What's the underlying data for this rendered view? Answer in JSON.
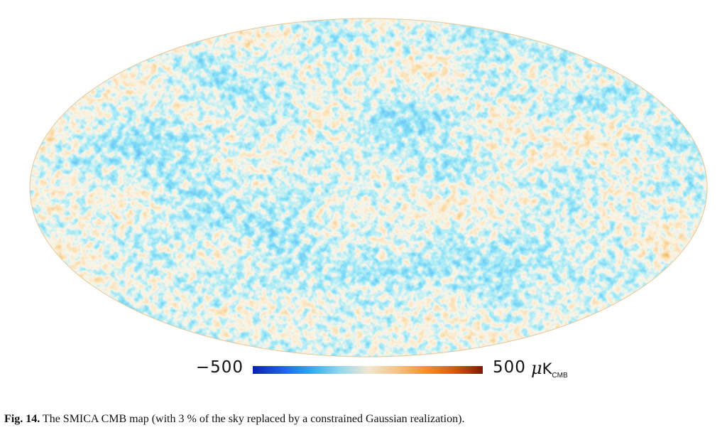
{
  "figure": {
    "projection": "Mollweide",
    "map_colors": {
      "cold": "#1f5fe0",
      "cool": "#35b6e8",
      "neutral": "#f2ead2",
      "warm": "#f0a640",
      "hot": "#d86a14"
    }
  },
  "colorbar": {
    "min_label": "−500",
    "max_label": "500",
    "unit_prefix": "μ",
    "unit_main": "K",
    "unit_sub": "CMB",
    "gradient": [
      "#0a1fb5",
      "#1e5ee8",
      "#2fa8ec",
      "#8fd6ee",
      "#efe7d2",
      "#f4c48a",
      "#f2922e",
      "#d55a10",
      "#7a1c05"
    ]
  },
  "caption": {
    "label": "Fig. 14.",
    "text": " The SMICA CMB map (with 3 % of the sky replaced by a constrained Gaussian realization)."
  }
}
